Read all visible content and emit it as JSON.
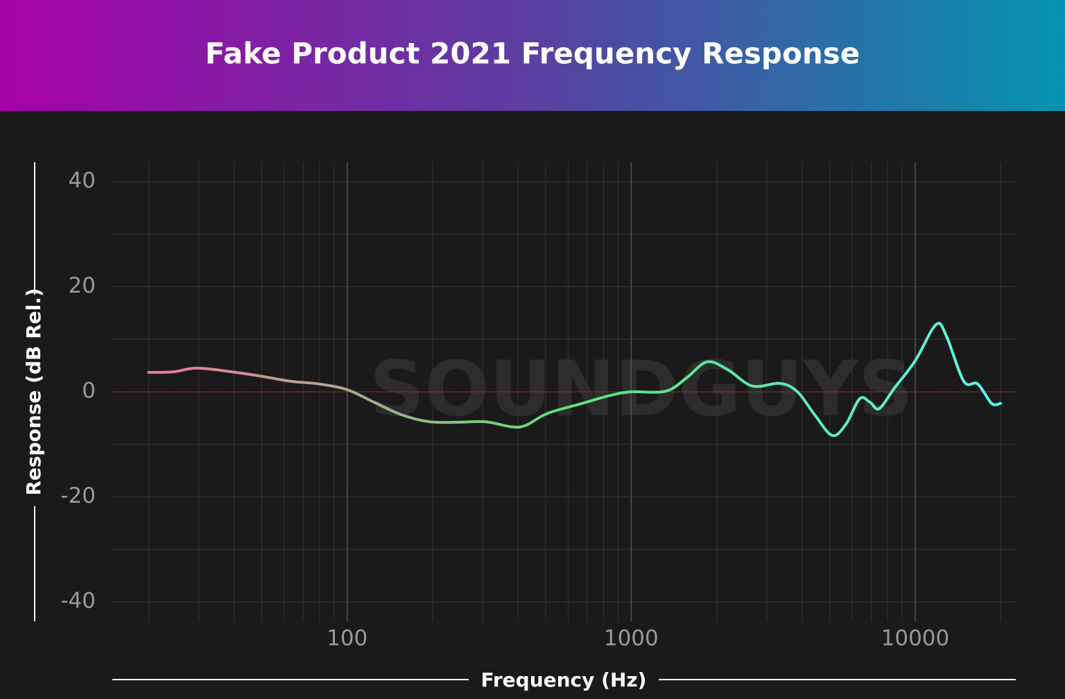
{
  "chart_data": {
    "type": "line",
    "title": "Fake Product 2021 Frequency Response",
    "xlabel": "Frequency (Hz)",
    "ylabel": "Response (dB Rel.)",
    "watermark": "SOUNDGUYS",
    "x": [
      20,
      24.4,
      29.7,
      40.5,
      50.7,
      63.4,
      79.4,
      100,
      124.5,
      156,
      195,
      244,
      306,
      384,
      429,
      508,
      673,
      842,
      1000,
      1321,
      1563,
      1850,
      2190,
      2670,
      3340,
      3850,
      4430,
      5100,
      5700,
      6380,
      6940,
      7470,
      8450,
      10000,
      11840,
      12880,
      14830,
      16600,
      18570,
      20000
    ],
    "values": [
      3.7,
      3.8,
      4.5,
      3.7,
      2.9,
      2.0,
      1.5,
      0.4,
      -2.0,
      -4.4,
      -5.7,
      -5.8,
      -5.7,
      -6.7,
      -6.3,
      -4.1,
      -2.2,
      -0.7,
      0,
      0.1,
      2.6,
      5.7,
      4.2,
      1.1,
      1.6,
      0,
      -4.4,
      -8.3,
      -6.2,
      -1.3,
      -2.0,
      -3.2,
      0.7,
      5.9,
      12.8,
      10.6,
      2.0,
      1.5,
      -2.2,
      -2.2
    ],
    "colors": [
      "#ff6fa0",
      "#5ee07a",
      "#5ff5ee"
    ],
    "log_x": true,
    "xlim": [
      14.9,
      22600
    ],
    "ylim": [
      -43.7,
      43.7
    ],
    "xticks": [
      100,
      1000,
      10000
    ],
    "xgrid": [
      20,
      30,
      40,
      50,
      60,
      70,
      80,
      90,
      100,
      200,
      300,
      400,
      500,
      600,
      700,
      800,
      900,
      1000,
      2000,
      3000,
      4000,
      5000,
      6000,
      7000,
      8000,
      9000,
      10000,
      20000
    ],
    "yticks": [
      -40,
      -20,
      0,
      20,
      40
    ],
    "ygrid": [
      -40,
      -30,
      -20,
      -10,
      0,
      10,
      20,
      30,
      40
    ],
    "zero_line_color": "#c0282a",
    "grid": true
  }
}
